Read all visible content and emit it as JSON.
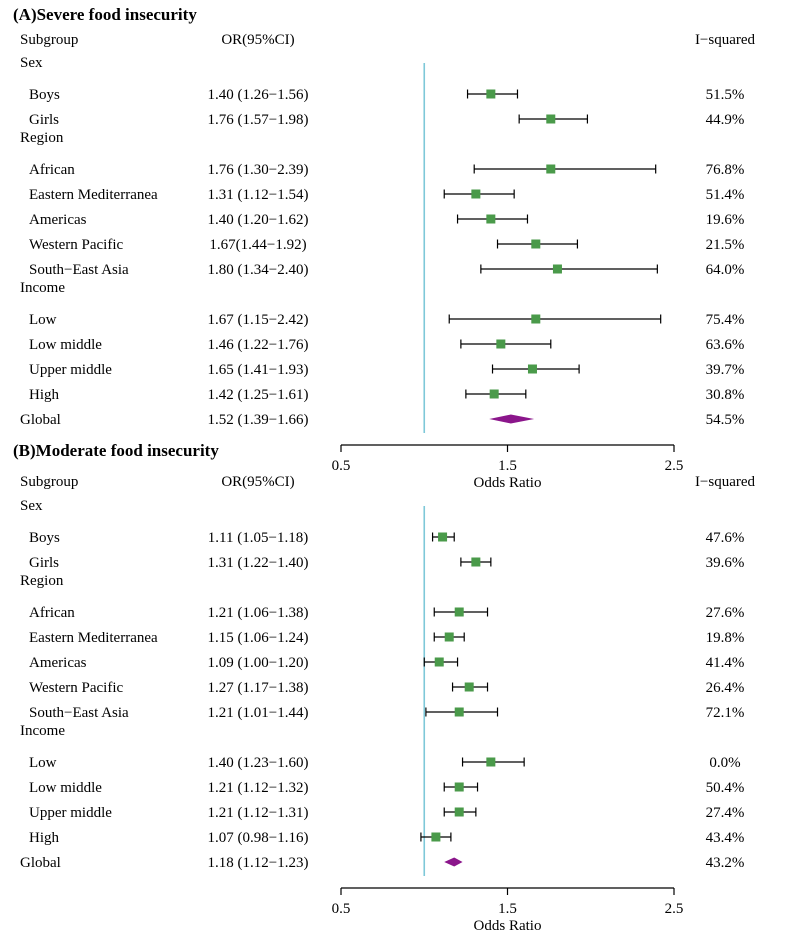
{
  "colors": {
    "marker": "#4a9a4a",
    "diamond": "#8b168b",
    "refline": "#7ec8d8",
    "line": "#000000"
  },
  "chart_data": [
    {
      "type": "forest",
      "title": "(A)Severe food insecurity",
      "headers": {
        "subgroup": "Subgroup",
        "or": "OR(95%CI)",
        "i2": "I−squared"
      },
      "xlabel": "Odds Ratio",
      "xlim": [
        0.5,
        2.5
      ],
      "xticks": [
        "0.5",
        "1.5",
        "2.5"
      ],
      "reference": 1.0,
      "rows": [
        {
          "kind": "group",
          "label": "Sex"
        },
        {
          "kind": "item",
          "label": "Boys",
          "or_text": "1.40 (1.26−1.56)",
          "est": 1.4,
          "lo": 1.26,
          "hi": 1.56,
          "i2": "51.5%"
        },
        {
          "kind": "item",
          "label": "Girls",
          "or_text": "1.76 (1.57−1.98)",
          "est": 1.76,
          "lo": 1.57,
          "hi": 1.98,
          "i2": "44.9%"
        },
        {
          "kind": "group",
          "label": "Region"
        },
        {
          "kind": "item",
          "label": "African",
          "or_text": "1.76 (1.30−2.39)",
          "est": 1.76,
          "lo": 1.3,
          "hi": 2.39,
          "i2": "76.8%"
        },
        {
          "kind": "item",
          "label": "Eastern Mediterranea",
          "or_text": "1.31 (1.12−1.54)",
          "est": 1.31,
          "lo": 1.12,
          "hi": 1.54,
          "i2": "51.4%"
        },
        {
          "kind": "item",
          "label": "Americas",
          "or_text": "1.40 (1.20−1.62)",
          "est": 1.4,
          "lo": 1.2,
          "hi": 1.62,
          "i2": "19.6%"
        },
        {
          "kind": "item",
          "label": "Western Pacific",
          "or_text": "1.67(1.44−1.92)",
          "est": 1.67,
          "lo": 1.44,
          "hi": 1.92,
          "i2": "21.5%"
        },
        {
          "kind": "item",
          "label": "South−East Asia",
          "or_text": "1.80 (1.34−2.40)",
          "est": 1.8,
          "lo": 1.34,
          "hi": 2.4,
          "i2": "64.0%"
        },
        {
          "kind": "group",
          "label": "Income"
        },
        {
          "kind": "item",
          "label": "Low",
          "or_text": "1.67 (1.15−2.42)",
          "est": 1.67,
          "lo": 1.15,
          "hi": 2.42,
          "i2": "75.4%"
        },
        {
          "kind": "item",
          "label": "Low middle",
          "or_text": "1.46 (1.22−1.76)",
          "est": 1.46,
          "lo": 1.22,
          "hi": 1.76,
          "i2": "63.6%"
        },
        {
          "kind": "item",
          "label": "Upper middle",
          "or_text": "1.65 (1.41−1.93)",
          "est": 1.65,
          "lo": 1.41,
          "hi": 1.93,
          "i2": "39.7%"
        },
        {
          "kind": "item",
          "label": "High",
          "or_text": "1.42 (1.25−1.61)",
          "est": 1.42,
          "lo": 1.25,
          "hi": 1.61,
          "i2": "30.8%"
        },
        {
          "kind": "global",
          "label": "Global",
          "or_text": "1.52 (1.39−1.66)",
          "est": 1.52,
          "lo": 1.39,
          "hi": 1.66,
          "i2": "54.5%"
        }
      ]
    },
    {
      "type": "forest",
      "title": "(B)Moderate food insecurity",
      "headers": {
        "subgroup": "Subgroup",
        "or": "OR(95%CI)",
        "i2": "I−squared"
      },
      "xlabel": "Odds Ratio",
      "xlim": [
        0.5,
        2.5
      ],
      "xticks": [
        "0.5",
        "1.5",
        "2.5"
      ],
      "reference": 1.0,
      "rows": [
        {
          "kind": "group",
          "label": "Sex"
        },
        {
          "kind": "item",
          "label": "Boys",
          "or_text": "1.11 (1.05−1.18)",
          "est": 1.11,
          "lo": 1.05,
          "hi": 1.18,
          "i2": "47.6%"
        },
        {
          "kind": "item",
          "label": "Girls",
          "or_text": "1.31 (1.22−1.40)",
          "est": 1.31,
          "lo": 1.22,
          "hi": 1.4,
          "i2": "39.6%"
        },
        {
          "kind": "group",
          "label": "Region"
        },
        {
          "kind": "item",
          "label": "African",
          "or_text": "1.21 (1.06−1.38)",
          "est": 1.21,
          "lo": 1.06,
          "hi": 1.38,
          "i2": "27.6%"
        },
        {
          "kind": "item",
          "label": "Eastern Mediterranea",
          "or_text": "1.15 (1.06−1.24)",
          "est": 1.15,
          "lo": 1.06,
          "hi": 1.24,
          "i2": "19.8%"
        },
        {
          "kind": "item",
          "label": "Americas",
          "or_text": "1.09 (1.00−1.20)",
          "est": 1.09,
          "lo": 1.0,
          "hi": 1.2,
          "i2": "41.4%"
        },
        {
          "kind": "item",
          "label": "Western Pacific",
          "or_text": "1.27 (1.17−1.38)",
          "est": 1.27,
          "lo": 1.17,
          "hi": 1.38,
          "i2": "26.4%"
        },
        {
          "kind": "item",
          "label": "South−East Asia",
          "or_text": "1.21 (1.01−1.44)",
          "est": 1.21,
          "lo": 1.01,
          "hi": 1.44,
          "i2": "72.1%"
        },
        {
          "kind": "group",
          "label": "Income"
        },
        {
          "kind": "item",
          "label": "Low",
          "or_text": "1.40 (1.23−1.60)",
          "est": 1.4,
          "lo": 1.23,
          "hi": 1.6,
          "i2": "0.0%"
        },
        {
          "kind": "item",
          "label": "Low middle",
          "or_text": "1.21 (1.12−1.32)",
          "est": 1.21,
          "lo": 1.12,
          "hi": 1.32,
          "i2": "50.4%"
        },
        {
          "kind": "item",
          "label": "Upper middle",
          "or_text": "1.21 (1.12−1.31)",
          "est": 1.21,
          "lo": 1.12,
          "hi": 1.31,
          "i2": "27.4%"
        },
        {
          "kind": "item",
          "label": "High",
          "or_text": "1.07 (0.98−1.16)",
          "est": 1.07,
          "lo": 0.98,
          "hi": 1.16,
          "i2": "43.4%"
        },
        {
          "kind": "global",
          "label": "Global",
          "or_text": "1.18 (1.12−1.23)",
          "est": 1.18,
          "lo": 1.12,
          "hi": 1.23,
          "i2": "43.2%"
        }
      ]
    }
  ]
}
